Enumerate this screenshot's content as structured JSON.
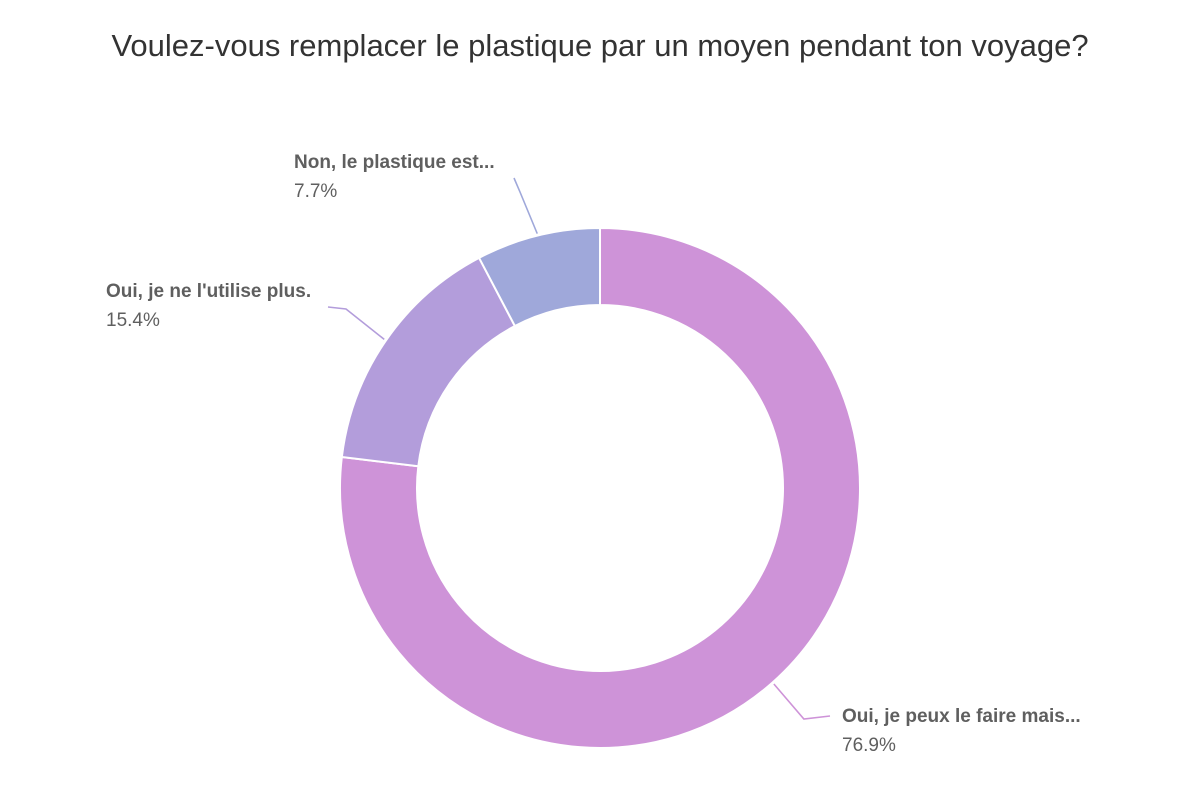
{
  "chart_data": {
    "type": "pie",
    "title": "Voulez-vous remplacer le plastique par un moyen pendant ton voyage?",
    "donut": true,
    "slices": [
      {
        "label": "Oui, je peux le faire mais...",
        "value": 76.9,
        "value_label": "76.9%",
        "color": "#ce93d8"
      },
      {
        "label": "Oui, je ne l'utilise plus.",
        "value": 15.4,
        "value_label": "15.4%",
        "color": "#b39ddb"
      },
      {
        "label": "Non, le plastique est...",
        "value": 7.7,
        "value_label": "7.7%",
        "color": "#9fa8da"
      }
    ],
    "legend": "none"
  }
}
